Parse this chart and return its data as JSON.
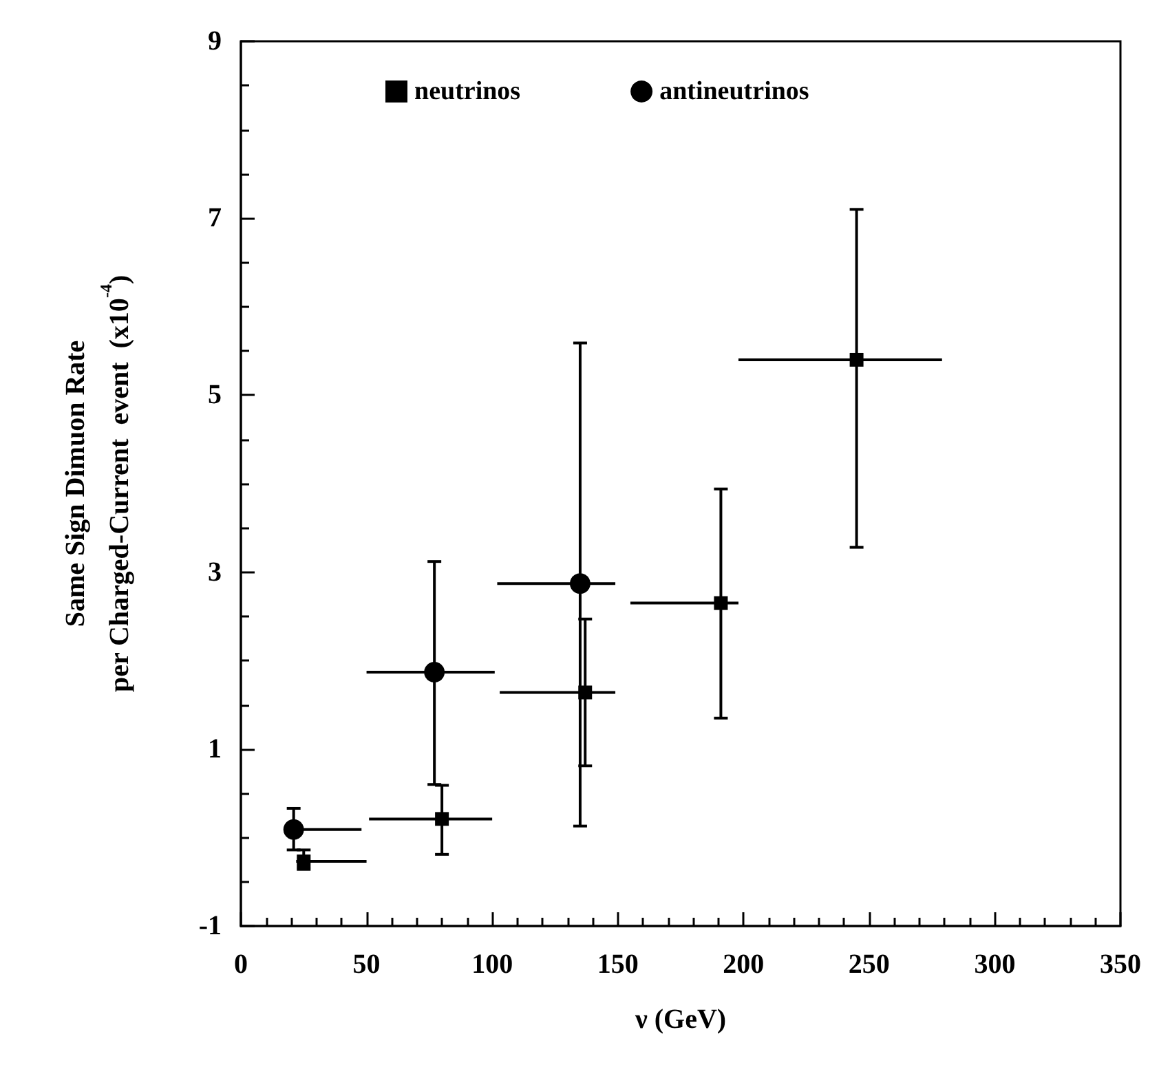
{
  "chart_data": {
    "type": "scatter",
    "xlabel": "ν (GeV)",
    "ylabel": "Same Sign Dimuon Rate\nper Charged-Current  event  (x10$^{-4}$)",
    "xlim": [
      0,
      350
    ],
    "xticks": [
      0,
      50,
      100,
      150,
      200,
      250,
      300,
      350
    ],
    "ylim": [
      -1,
      9
    ],
    "yticks": [
      -1,
      1,
      3,
      5,
      7,
      9
    ],
    "legend": "top",
    "series": [
      {
        "name": "neutrinos",
        "color": "#000000",
        "marker": "square",
        "x": [
          25,
          80,
          137,
          191,
          245
        ],
        "values": [
          -0.27,
          0.21,
          1.64,
          2.65,
          5.4
        ],
        "errors": [
          [
            -0.36,
            -0.14
          ],
          [
            -0.19,
            0.59
          ],
          [
            0.81,
            2.47
          ],
          [
            1.35,
            3.94
          ],
          [
            3.28,
            7.1
          ]
        ],
        "xerrors": [
          [
            22,
            50
          ],
          [
            51,
            100
          ],
          [
            103,
            149
          ],
          [
            155,
            198
          ],
          [
            198,
            279
          ]
        ]
      },
      {
        "name": "antineutrinos",
        "color": "#000000",
        "marker": "circle",
        "x": [
          21,
          77,
          135
        ],
        "values": [
          0.09,
          1.87,
          2.87
        ],
        "errors": [
          [
            -0.14,
            0.33
          ],
          [
            0.6,
            3.12
          ],
          [
            0.13,
            5.59
          ]
        ],
        "xerrors": [
          [
            21,
            48
          ],
          [
            50,
            101
          ],
          [
            102,
            149
          ]
        ]
      }
    ]
  }
}
